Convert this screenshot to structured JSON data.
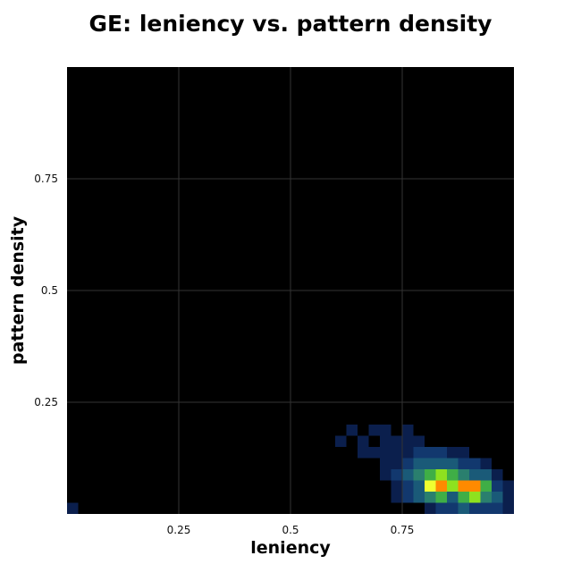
{
  "chart_data": {
    "type": "heatmap",
    "title": "GE: leniency vs. pattern density",
    "xlabel": "leniency",
    "ylabel": "pattern density",
    "xlim": [
      0,
      1
    ],
    "ylim": [
      0,
      1
    ],
    "bins": 40,
    "grid": true,
    "background": "#000000",
    "grid_color": "#333333",
    "colormap": [
      "#0b1f4d",
      "#12386e",
      "#1a5a78",
      "#2a7f6e",
      "#3fae46",
      "#8ee11f",
      "#f0ff30",
      "#ff8a00",
      "#ff1a1a"
    ],
    "xticks": [
      0.25,
      0.5,
      0.75
    ],
    "xtick_labels": [
      "0.25",
      "0.5",
      "0.75"
    ],
    "yticks": [
      0.25,
      0.5,
      0.75
    ],
    "ytick_labels": [
      "0.25",
      "0.5",
      "0.75"
    ],
    "cells": [
      [
        0,
        0,
        1
      ],
      [
        24,
        6,
        1
      ],
      [
        25,
        7,
        1
      ],
      [
        27,
        7,
        1
      ],
      [
        28,
        7,
        1
      ],
      [
        30,
        7,
        1
      ],
      [
        26,
        6,
        1
      ],
      [
        28,
        6,
        1
      ],
      [
        29,
        6,
        1
      ],
      [
        30,
        6,
        1
      ],
      [
        31,
        6,
        1
      ],
      [
        26,
        5,
        1
      ],
      [
        27,
        5,
        1
      ],
      [
        28,
        5,
        1
      ],
      [
        29,
        5,
        1
      ],
      [
        30,
        5,
        1
      ],
      [
        31,
        5,
        2
      ],
      [
        32,
        5,
        2
      ],
      [
        33,
        5,
        2
      ],
      [
        34,
        5,
        1
      ],
      [
        35,
        5,
        1
      ],
      [
        28,
        4,
        1
      ],
      [
        29,
        4,
        1
      ],
      [
        30,
        4,
        2
      ],
      [
        31,
        4,
        3
      ],
      [
        32,
        4,
        3
      ],
      [
        33,
        4,
        3
      ],
      [
        34,
        4,
        3
      ],
      [
        35,
        4,
        2
      ],
      [
        36,
        4,
        2
      ],
      [
        37,
        4,
        1
      ],
      [
        28,
        3,
        1
      ],
      [
        29,
        3,
        2
      ],
      [
        30,
        3,
        3
      ],
      [
        31,
        3,
        4
      ],
      [
        32,
        3,
        5
      ],
      [
        33,
        3,
        6
      ],
      [
        34,
        3,
        5
      ],
      [
        35,
        3,
        4
      ],
      [
        36,
        3,
        3
      ],
      [
        37,
        3,
        3
      ],
      [
        38,
        3,
        1
      ],
      [
        29,
        2,
        1
      ],
      [
        30,
        2,
        2
      ],
      [
        31,
        2,
        3
      ],
      [
        32,
        2,
        7
      ],
      [
        33,
        2,
        8
      ],
      [
        34,
        2,
        6
      ],
      [
        35,
        2,
        8
      ],
      [
        36,
        2,
        8
      ],
      [
        37,
        2,
        5
      ],
      [
        38,
        2,
        2
      ],
      [
        39,
        2,
        1
      ],
      [
        29,
        1,
        1
      ],
      [
        30,
        1,
        2
      ],
      [
        31,
        1,
        3
      ],
      [
        32,
        1,
        4
      ],
      [
        33,
        1,
        5
      ],
      [
        34,
        1,
        3
      ],
      [
        35,
        1,
        5
      ],
      [
        36,
        1,
        6
      ],
      [
        37,
        1,
        4
      ],
      [
        38,
        1,
        3
      ],
      [
        39,
        1,
        1
      ],
      [
        32,
        0,
        1
      ],
      [
        33,
        0,
        2
      ],
      [
        34,
        0,
        2
      ],
      [
        35,
        0,
        3
      ],
      [
        36,
        0,
        2
      ],
      [
        37,
        0,
        2
      ],
      [
        38,
        0,
        2
      ],
      [
        39,
        0,
        1
      ]
    ]
  }
}
